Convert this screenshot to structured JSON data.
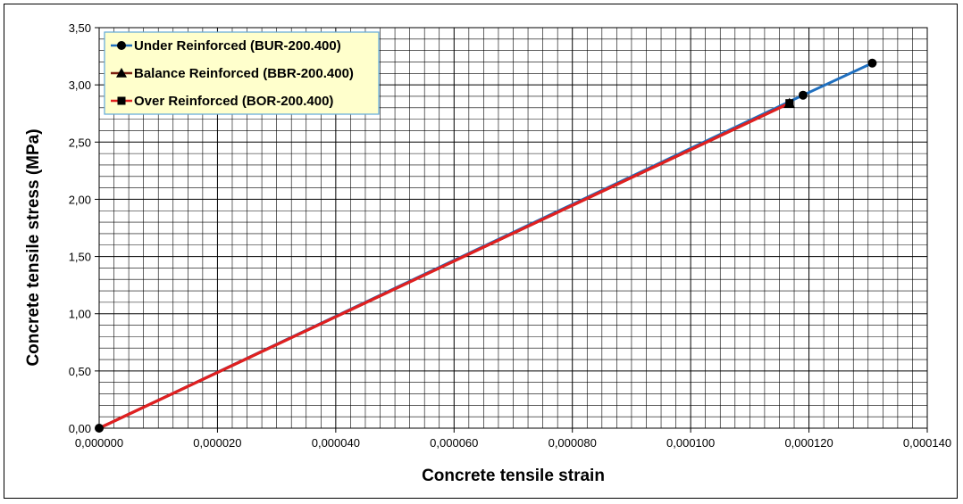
{
  "chart_data": {
    "type": "line",
    "xlabel": "Concrete tensile strain",
    "ylabel": "Concrete tensile stress (MPa)",
    "xlim": [
      0,
      0.00014
    ],
    "ylim": [
      0,
      3.5
    ],
    "x_ticks": [
      "0,000000",
      "0,000020",
      "0,000040",
      "0,000060",
      "0,000080",
      "0,000100",
      "0,000120",
      "0,000140"
    ],
    "y_ticks": [
      "0,00",
      "0,50",
      "1,00",
      "1,50",
      "2,00",
      "2,50",
      "3,00",
      "3,50"
    ],
    "grid": true,
    "legend_position": "top-left",
    "series": [
      {
        "name": "Under Reinforced (BUR-200.400)",
        "color": "#1f6fbf",
        "marker": "circle",
        "x": [
          0,
          0.000119,
          0.0001307
        ],
        "y": [
          0,
          2.91,
          3.19
        ]
      },
      {
        "name": "Balance Reinforced (BBR-200.400)",
        "color": "#7a1f0f",
        "marker": "triangle",
        "x": [
          0,
          0.0001167
        ],
        "y": [
          0,
          2.84
        ]
      },
      {
        "name": "Over Reinforced (BOR-200.400)",
        "color": "#e02020",
        "marker": "square",
        "x": [
          0,
          0.0001167
        ],
        "y": [
          0,
          2.84
        ]
      }
    ]
  }
}
